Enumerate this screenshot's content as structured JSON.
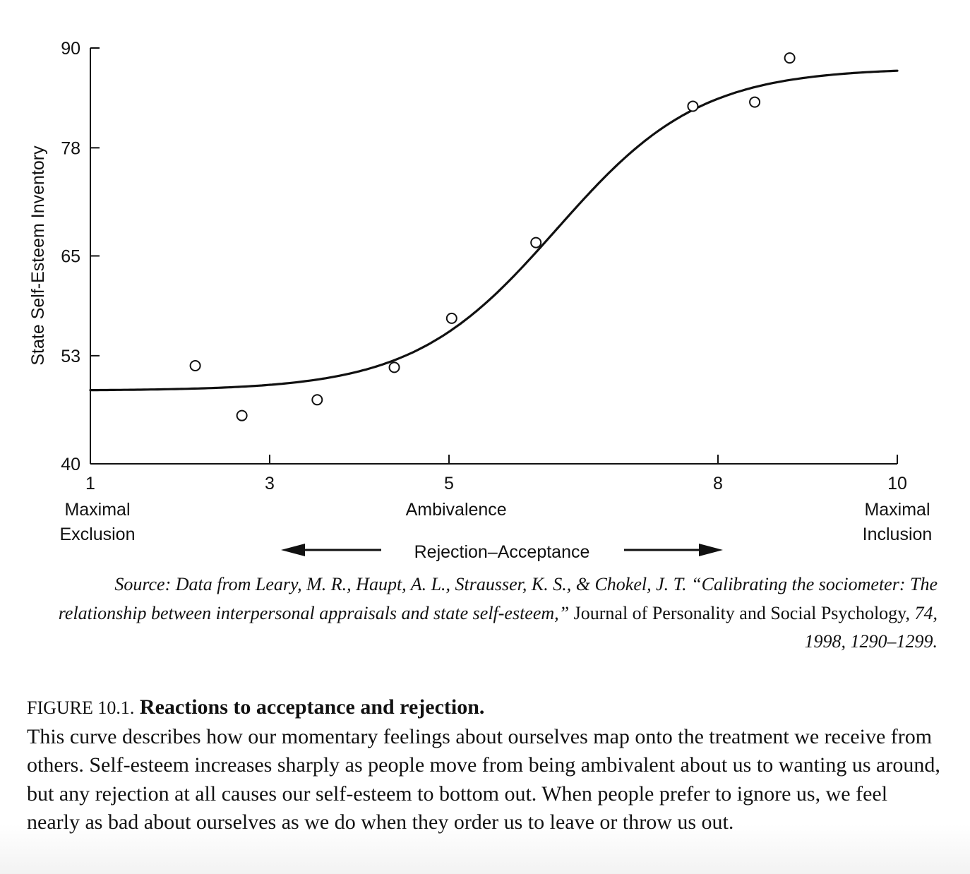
{
  "chart_data": {
    "type": "scatter",
    "ylabel": "State Self-Esteem Inventory",
    "xlabel": "Rejection–Acceptance",
    "xlim": [
      1,
      10
    ],
    "ylim": [
      40,
      90
    ],
    "x_ticks": [
      {
        "value": 1,
        "label": "1"
      },
      {
        "value": 3,
        "label": "3"
      },
      {
        "value": 5,
        "label": "5"
      },
      {
        "value": 8,
        "label": "8"
      },
      {
        "value": 10,
        "label": "10"
      }
    ],
    "y_ticks": [
      {
        "value": 40,
        "label": "40"
      },
      {
        "value": 53,
        "label": "53"
      },
      {
        "value": 65,
        "label": "65"
      },
      {
        "value": 78,
        "label": "78"
      },
      {
        "value": 90,
        "label": "90"
      }
    ],
    "x_tick_positions": [
      1,
      3,
      5,
      8,
      10
    ],
    "category_labels": [
      {
        "value": 1,
        "lines": [
          "Maximal",
          "Exclusion"
        ]
      },
      {
        "value": 5.08,
        "lines": [
          "Ambivalence"
        ]
      },
      {
        "value": 10,
        "lines": [
          "Maximal",
          "Inclusion"
        ]
      }
    ],
    "points": [
      {
        "x": 2.17,
        "y": 51.8
      },
      {
        "x": 2.69,
        "y": 45.8
      },
      {
        "x": 3.53,
        "y": 47.7
      },
      {
        "x": 4.39,
        "y": 51.6
      },
      {
        "x": 5.03,
        "y": 57.5
      },
      {
        "x": 5.97,
        "y": 66.6
      },
      {
        "x": 7.72,
        "y": 83.0
      },
      {
        "x": 8.41,
        "y": 83.5
      },
      {
        "x": 8.8,
        "y": 88.8
      }
    ],
    "fit_curve": {
      "type": "logistic",
      "lower": 48.8,
      "upper": 87.6,
      "midpoint": 6.2,
      "slope": 1.25
    },
    "grid": false,
    "legend": "none"
  },
  "source": {
    "part1": "Source: Data from Leary, M. R., Haupt, A. L., Strausser, K. S., & Chokel, J. T. “Calibrating the sociometer: The relationship between interpersonal appraisals and state self-esteem,”",
    "part2": "Journal of Personality and Social Psychology,",
    "part3": "74, 1998, 1290–1299."
  },
  "caption": {
    "figure_number": "FIGURE 10.1.",
    "title": "Reactions to acceptance and rejection.",
    "body": "This curve describes how our momentary feelings about ourselves map onto the treatment we receive from others. Self-esteem increases sharply as people move from being ambivalent about us to wanting us around, but any rejection at all causes our self-esteem to bottom out. When people prefer to ignore us, we feel nearly as bad about ourselves as we do when they order us to leave or throw us out."
  }
}
